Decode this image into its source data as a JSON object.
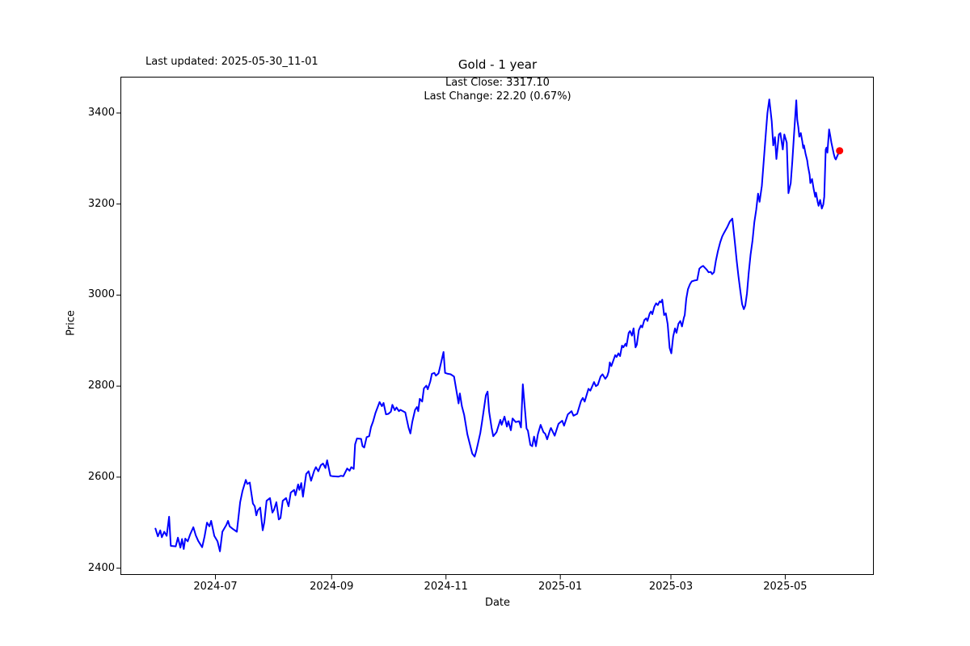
{
  "header": {
    "last_updated": "Last updated: 2025-05-30_11-01",
    "title": "Gold - 1 year"
  },
  "annotation": {
    "line1": "Last Close: 3317.10",
    "line2": "Last Change: 22.20 (0.67%)"
  },
  "chart_data": {
    "type": "line",
    "title": "Gold - 1 year",
    "series_name": "Gold",
    "xlabel": "Date",
    "ylabel": "Price",
    "grid": false,
    "legend": "none",
    "line_color": "#0000ff",
    "last_point_color": "#ff0000",
    "last_close": 3317.1,
    "last_change": 22.2,
    "last_change_pct": 0.67,
    "x_axis": {
      "start_date": "2024-05-30",
      "end_date": "2025-05-30",
      "unit": "days_from_start",
      "span_days": 365,
      "pad_days": 18.25,
      "ticks": [
        {
          "label": "2024-07",
          "day": 32
        },
        {
          "label": "2024-09",
          "day": 94
        },
        {
          "label": "2024-11",
          "day": 155
        },
        {
          "label": "2025-01",
          "day": 216
        },
        {
          "label": "2025-03",
          "day": 275
        },
        {
          "label": "2025-05",
          "day": 336
        }
      ]
    },
    "y_axis": {
      "ticks": [
        2400,
        2600,
        2800,
        3000,
        3200,
        3400
      ],
      "lim": [
        2386,
        3478
      ]
    },
    "points": [
      [
        0,
        2487
      ],
      [
        1.3,
        2470
      ],
      [
        2.6,
        2483
      ],
      [
        3.4,
        2468
      ],
      [
        4.7,
        2480
      ],
      [
        6,
        2471
      ],
      [
        7.3,
        2513
      ],
      [
        8.2,
        2449
      ],
      [
        10.8,
        2448
      ],
      [
        12,
        2467
      ],
      [
        13.3,
        2445
      ],
      [
        14.2,
        2464
      ],
      [
        15.1,
        2442
      ],
      [
        15.9,
        2465
      ],
      [
        17.2,
        2459
      ],
      [
        18.5,
        2474
      ],
      [
        20.2,
        2490
      ],
      [
        21.5,
        2472
      ],
      [
        22.8,
        2460
      ],
      [
        24.9,
        2446
      ],
      [
        26.2,
        2470
      ],
      [
        27.5,
        2500
      ],
      [
        28.8,
        2492
      ],
      [
        29.7,
        2504
      ],
      [
        31.4,
        2471
      ],
      [
        33.1,
        2459
      ],
      [
        34.4,
        2437
      ],
      [
        35.7,
        2480
      ],
      [
        37.8,
        2495
      ],
      [
        38.7,
        2504
      ],
      [
        39.6,
        2492
      ],
      [
        41.3,
        2486
      ],
      [
        43.4,
        2480
      ],
      [
        45.2,
        2545
      ],
      [
        46.4,
        2569
      ],
      [
        48.2,
        2594
      ],
      [
        49,
        2585
      ],
      [
        50.3,
        2588
      ],
      [
        52,
        2542
      ],
      [
        53,
        2536
      ],
      [
        53.8,
        2516
      ],
      [
        54.6,
        2527
      ],
      [
        55.9,
        2533
      ],
      [
        57.2,
        2483
      ],
      [
        58.1,
        2501
      ],
      [
        59.3,
        2548
      ],
      [
        61.1,
        2554
      ],
      [
        62.4,
        2522
      ],
      [
        63.2,
        2528
      ],
      [
        64.5,
        2545
      ],
      [
        65.8,
        2507
      ],
      [
        66.7,
        2510
      ],
      [
        67.9,
        2548
      ],
      [
        69.7,
        2554
      ],
      [
        71,
        2536
      ],
      [
        72.2,
        2566
      ],
      [
        74,
        2572
      ],
      [
        74.7,
        2560
      ],
      [
        76.1,
        2584
      ],
      [
        76.8,
        2572
      ],
      [
        77.8,
        2587
      ],
      [
        78.7,
        2557
      ],
      [
        80.4,
        2607
      ],
      [
        81.7,
        2613
      ],
      [
        83,
        2592
      ],
      [
        84.7,
        2614
      ],
      [
        85.6,
        2622
      ],
      [
        86.9,
        2613
      ],
      [
        88.2,
        2626
      ],
      [
        89.4,
        2630
      ],
      [
        90.7,
        2620
      ],
      [
        91.6,
        2637
      ],
      [
        93.3,
        2603
      ],
      [
        94.6,
        2602
      ],
      [
        97.6,
        2601
      ],
      [
        99,
        2603
      ],
      [
        100.2,
        2602
      ],
      [
        102.3,
        2619
      ],
      [
        103.6,
        2614
      ],
      [
        104.5,
        2622
      ],
      [
        105.8,
        2618
      ],
      [
        106.5,
        2672
      ],
      [
        107.5,
        2685
      ],
      [
        109.7,
        2684
      ],
      [
        110.5,
        2668
      ],
      [
        111.4,
        2665
      ],
      [
        112.7,
        2688
      ],
      [
        114,
        2690
      ],
      [
        115,
        2710
      ],
      [
        116.1,
        2722
      ],
      [
        117.4,
        2741
      ],
      [
        119.6,
        2765
      ],
      [
        120.8,
        2756
      ],
      [
        121.7,
        2763
      ],
      [
        123,
        2738
      ],
      [
        124.3,
        2739
      ],
      [
        125.6,
        2744
      ],
      [
        126.4,
        2759
      ],
      [
        127.7,
        2747
      ],
      [
        128.6,
        2753
      ],
      [
        129.9,
        2745
      ],
      [
        130.7,
        2748
      ],
      [
        133.3,
        2742
      ],
      [
        135,
        2709
      ],
      [
        136,
        2696
      ],
      [
        137,
        2721
      ],
      [
        138.5,
        2748
      ],
      [
        139.5,
        2754
      ],
      [
        140.2,
        2745
      ],
      [
        141,
        2772
      ],
      [
        142.3,
        2766
      ],
      [
        143.2,
        2795
      ],
      [
        144.5,
        2801
      ],
      [
        145.3,
        2793
      ],
      [
        146.6,
        2810
      ],
      [
        147.5,
        2827
      ],
      [
        148.8,
        2829
      ],
      [
        149.6,
        2823
      ],
      [
        151,
        2828
      ],
      [
        152.2,
        2848
      ],
      [
        153.7,
        2875
      ],
      [
        154.5,
        2829
      ],
      [
        156,
        2827
      ],
      [
        157.5,
        2826
      ],
      [
        159.3,
        2821
      ],
      [
        161,
        2780
      ],
      [
        161.7,
        2762
      ],
      [
        162.4,
        2784
      ],
      [
        163.5,
        2756
      ],
      [
        164.7,
        2737
      ],
      [
        166.4,
        2694
      ],
      [
        167.7,
        2673
      ],
      [
        169,
        2652
      ],
      [
        170.3,
        2645
      ],
      [
        171.1,
        2657
      ],
      [
        172,
        2673
      ],
      [
        173.3,
        2697
      ],
      [
        174.2,
        2721
      ],
      [
        175,
        2743
      ],
      [
        176.3,
        2780
      ],
      [
        177.2,
        2788
      ],
      [
        178,
        2744
      ],
      [
        179.3,
        2709
      ],
      [
        180.2,
        2690
      ],
      [
        182,
        2699
      ],
      [
        184,
        2726
      ],
      [
        184.7,
        2715
      ],
      [
        186.2,
        2733
      ],
      [
        187.5,
        2711
      ],
      [
        188.3,
        2723
      ],
      [
        189.6,
        2703
      ],
      [
        190.5,
        2729
      ],
      [
        192.2,
        2721
      ],
      [
        194,
        2723
      ],
      [
        195,
        2709
      ],
      [
        196,
        2804
      ],
      [
        198,
        2707
      ],
      [
        198.7,
        2702
      ],
      [
        200,
        2671
      ],
      [
        201,
        2668
      ],
      [
        202,
        2689
      ],
      [
        203,
        2668
      ],
      [
        204,
        2694
      ],
      [
        205.5,
        2715
      ],
      [
        207,
        2699
      ],
      [
        208,
        2695
      ],
      [
        209,
        2683
      ],
      [
        210.5,
        2703
      ],
      [
        211,
        2708
      ],
      [
        213,
        2691
      ],
      [
        215,
        2717
      ],
      [
        217,
        2724
      ],
      [
        218,
        2713
      ],
      [
        220,
        2738
      ],
      [
        222,
        2745
      ],
      [
        223,
        2735
      ],
      [
        225,
        2739
      ],
      [
        227,
        2767
      ],
      [
        228,
        2774
      ],
      [
        229,
        2766
      ],
      [
        231,
        2794
      ],
      [
        232,
        2790
      ],
      [
        234,
        2809
      ],
      [
        235,
        2800
      ],
      [
        236,
        2803
      ],
      [
        237.5,
        2821
      ],
      [
        238.5,
        2826
      ],
      [
        240,
        2816
      ],
      [
        241,
        2822
      ],
      [
        241.8,
        2832
      ],
      [
        242.4,
        2852
      ],
      [
        243.2,
        2844
      ],
      [
        245.3,
        2868
      ],
      [
        246,
        2864
      ],
      [
        247,
        2872
      ],
      [
        247.9,
        2866
      ],
      [
        248.9,
        2889
      ],
      [
        249.6,
        2885
      ],
      [
        250.8,
        2893
      ],
      [
        251.3,
        2888
      ],
      [
        252.5,
        2917
      ],
      [
        253.2,
        2921
      ],
      [
        254.2,
        2911
      ],
      [
        255.1,
        2927
      ],
      [
        256.1,
        2885
      ],
      [
        256.8,
        2891
      ],
      [
        257.9,
        2923
      ],
      [
        259,
        2933
      ],
      [
        259.7,
        2929
      ],
      [
        260.8,
        2945
      ],
      [
        261.8,
        2949
      ],
      [
        262.5,
        2943
      ],
      [
        263.7,
        2960
      ],
      [
        264.4,
        2964
      ],
      [
        265.1,
        2958
      ],
      [
        266.1,
        2974
      ],
      [
        267.1,
        2982
      ],
      [
        268,
        2978
      ],
      [
        269,
        2986
      ],
      [
        269.7,
        2984
      ],
      [
        270.4,
        2990
      ],
      [
        271.4,
        2956
      ],
      [
        272.3,
        2960
      ],
      [
        273.3,
        2936
      ],
      [
        274.3,
        2884
      ],
      [
        275.2,
        2872
      ],
      [
        276.2,
        2909
      ],
      [
        277.2,
        2927
      ],
      [
        278,
        2917
      ],
      [
        279,
        2937
      ],
      [
        280,
        2943
      ],
      [
        280.9,
        2931
      ],
      [
        281.9,
        2950
      ],
      [
        282.4,
        2956
      ],
      [
        283.2,
        2992
      ],
      [
        284.1,
        3013
      ],
      [
        285.2,
        3024
      ],
      [
        286.1,
        3030
      ],
      [
        287.5,
        3032
      ],
      [
        289,
        3033
      ],
      [
        290.2,
        3058
      ],
      [
        291.2,
        3062
      ],
      [
        292.2,
        3064
      ],
      [
        293.1,
        3060
      ],
      [
        294.1,
        3056
      ],
      [
        295.1,
        3050
      ],
      [
        296.3,
        3051
      ],
      [
        297,
        3046
      ],
      [
        298,
        3050
      ],
      [
        299,
        3075
      ],
      [
        300.1,
        3097
      ],
      [
        301.3,
        3116
      ],
      [
        302.4,
        3129
      ],
      [
        303.4,
        3137
      ],
      [
        305,
        3149
      ],
      [
        306.5,
        3162
      ],
      [
        307.8,
        3168
      ],
      [
        309.1,
        3116
      ],
      [
        310.1,
        3075
      ],
      [
        311,
        3042
      ],
      [
        312,
        3010
      ],
      [
        313,
        2980
      ],
      [
        313.9,
        2969
      ],
      [
        314.7,
        2977
      ],
      [
        315.6,
        3004
      ],
      [
        316.5,
        3048
      ],
      [
        317.5,
        3088
      ],
      [
        318.5,
        3119
      ],
      [
        319.5,
        3160
      ],
      [
        320.5,
        3187
      ],
      [
        321.5,
        3223
      ],
      [
        322.3,
        3205
      ],
      [
        323.5,
        3240
      ],
      [
        324.5,
        3294
      ],
      [
        325.8,
        3364
      ],
      [
        326.5,
        3400
      ],
      [
        327.5,
        3430
      ],
      [
        328.8,
        3382
      ],
      [
        329.6,
        3329
      ],
      [
        330.5,
        3347
      ],
      [
        331.3,
        3299
      ],
      [
        332.6,
        3353
      ],
      [
        333.4,
        3356
      ],
      [
        334.7,
        3320
      ],
      [
        335.5,
        3353
      ],
      [
        336.8,
        3335
      ],
      [
        337.7,
        3224
      ],
      [
        338.9,
        3246
      ],
      [
        339.8,
        3294
      ],
      [
        340.6,
        3347
      ],
      [
        341.9,
        3428
      ],
      [
        342.4,
        3385
      ],
      [
        343,
        3368
      ],
      [
        343.5,
        3348
      ],
      [
        344.3,
        3356
      ],
      [
        345.1,
        3338
      ],
      [
        345.6,
        3323
      ],
      [
        346,
        3329
      ],
      [
        346.8,
        3311
      ],
      [
        347.7,
        3296
      ],
      [
        348.1,
        3284
      ],
      [
        349,
        3264
      ],
      [
        349.4,
        3246
      ],
      [
        350.3,
        3255
      ],
      [
        351.1,
        3234
      ],
      [
        352,
        3216
      ],
      [
        352.4,
        3225
      ],
      [
        353.3,
        3204
      ],
      [
        353.8,
        3196
      ],
      [
        354.6,
        3209
      ],
      [
        355.5,
        3190
      ],
      [
        356.3,
        3199
      ],
      [
        356.8,
        3216
      ],
      [
        357.6,
        3320
      ],
      [
        358,
        3324
      ],
      [
        358.5,
        3313
      ],
      [
        359.4,
        3364
      ],
      [
        360,
        3350
      ],
      [
        360.6,
        3335
      ],
      [
        361.4,
        3320
      ],
      [
        361.9,
        3310
      ],
      [
        362.5,
        3301
      ],
      [
        363,
        3298
      ],
      [
        364,
        3308
      ],
      [
        365,
        3317.1
      ]
    ]
  }
}
